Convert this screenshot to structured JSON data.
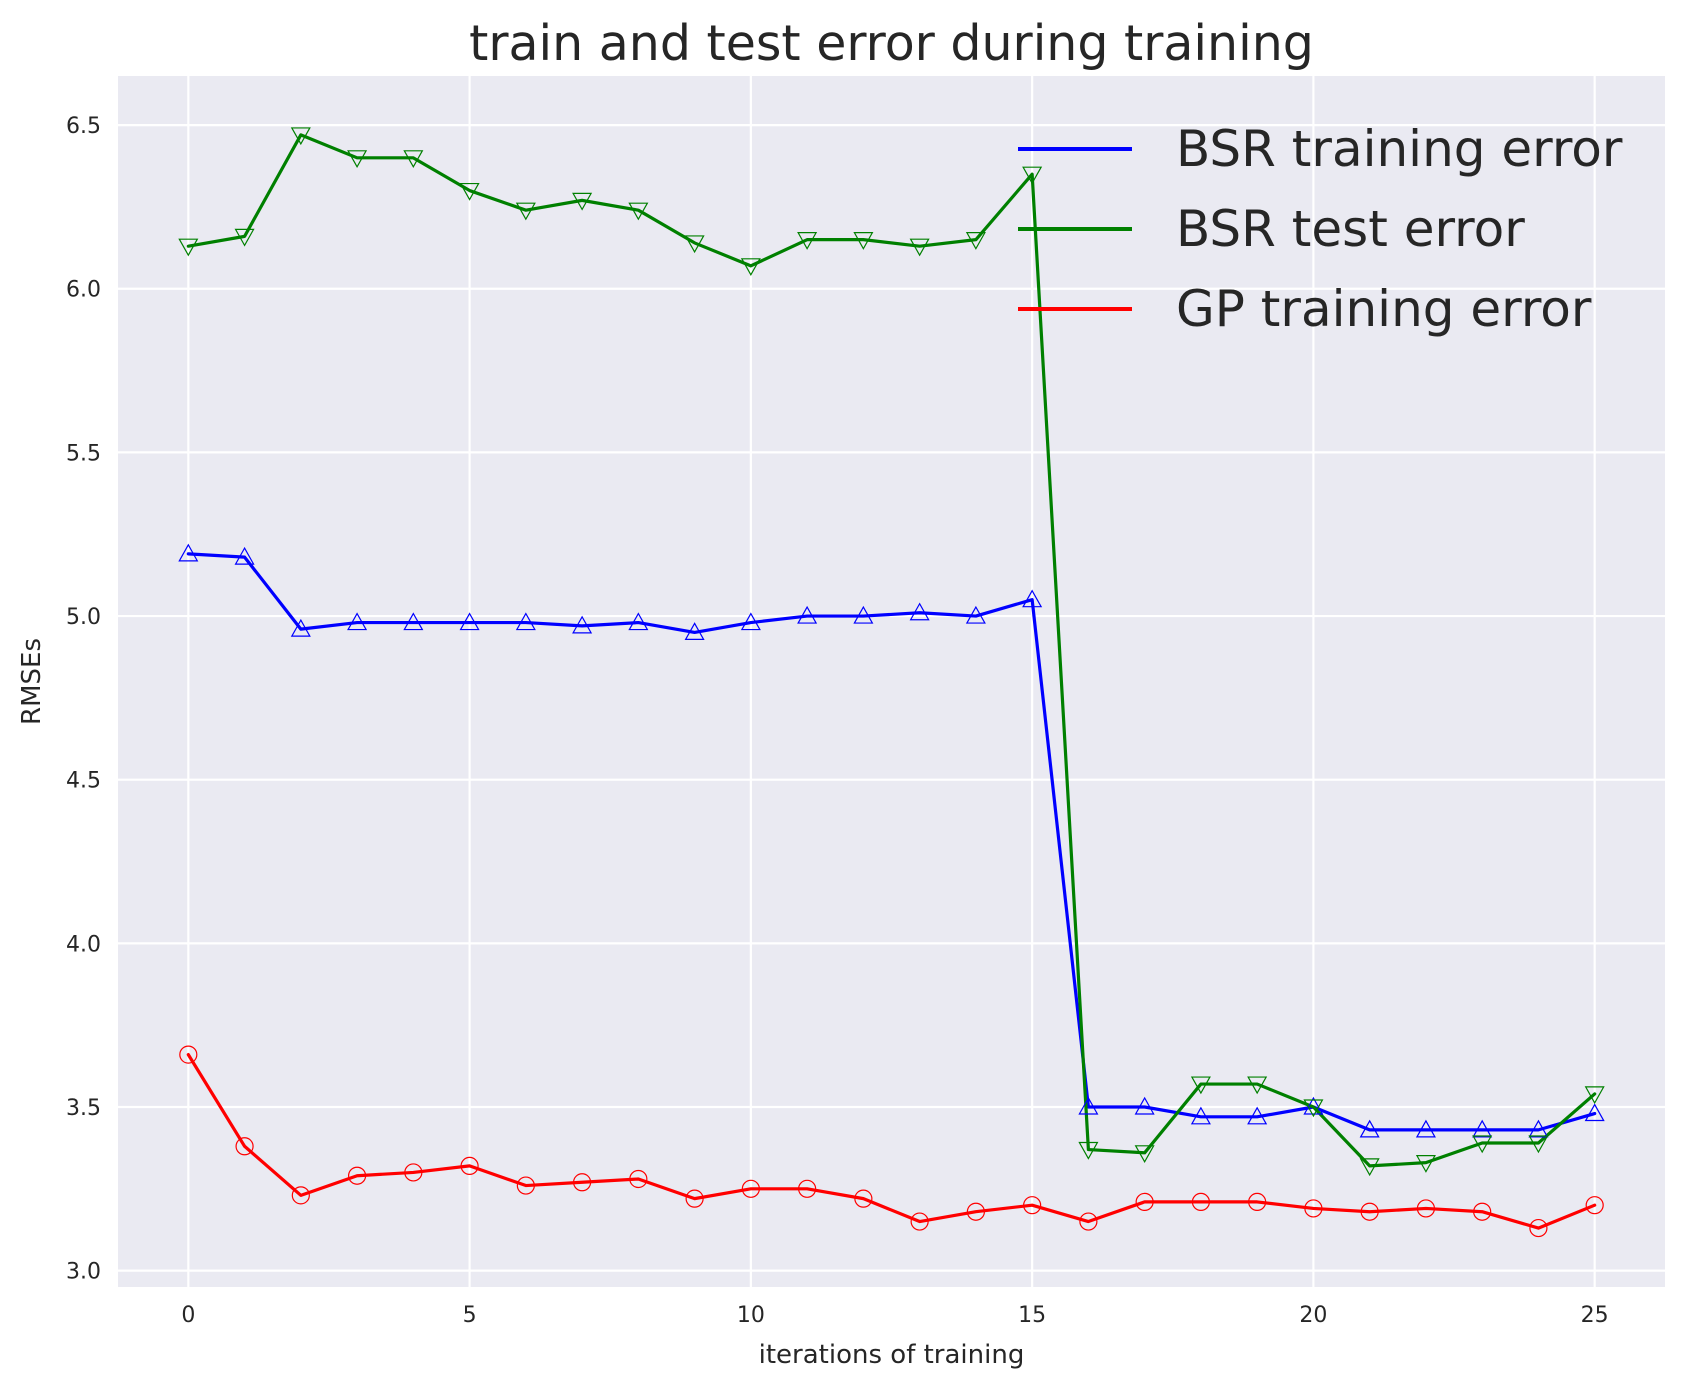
{
  "chart_data": {
    "type": "line",
    "title": "train and test error during training",
    "xlabel": "iterations of training",
    "ylabel": "RMSEs",
    "xlim": [
      -1.25,
      26.25
    ],
    "ylim": [
      2.95,
      6.65
    ],
    "x_ticks": [
      0,
      5,
      10,
      15,
      20,
      25
    ],
    "y_ticks": [
      3.0,
      3.5,
      4.0,
      4.5,
      5.0,
      5.5,
      6.0,
      6.5
    ],
    "grid": true,
    "legend_position": "top-right",
    "background_color": "#eaeaf2",
    "x": [
      0,
      1,
      2,
      3,
      4,
      5,
      6,
      7,
      8,
      9,
      10,
      11,
      12,
      13,
      14,
      15,
      16,
      17,
      18,
      19,
      20,
      21,
      22,
      23,
      24,
      25
    ],
    "series": [
      {
        "name": "BSR training error",
        "color": "#0000ff",
        "marker": "triangle-up",
        "values": [
          5.19,
          5.18,
          4.96,
          4.98,
          4.98,
          4.98,
          4.98,
          4.97,
          4.98,
          4.95,
          4.98,
          5.0,
          5.0,
          5.01,
          5.0,
          5.05,
          3.5,
          3.5,
          3.47,
          3.47,
          3.5,
          3.43,
          3.43,
          3.43,
          3.43,
          3.48
        ]
      },
      {
        "name": "BSR test error",
        "color": "#008000",
        "marker": "triangle-down",
        "values": [
          6.13,
          6.16,
          6.47,
          6.4,
          6.4,
          6.3,
          6.24,
          6.27,
          6.24,
          6.14,
          6.07,
          6.15,
          6.15,
          6.13,
          6.15,
          6.35,
          3.37,
          3.36,
          3.57,
          3.57,
          3.5,
          3.32,
          3.33,
          3.39,
          3.39,
          3.54
        ]
      },
      {
        "name": "GP training error",
        "color": "#ff0000",
        "marker": "circle",
        "values": [
          3.66,
          3.38,
          3.23,
          3.29,
          3.3,
          3.32,
          3.26,
          3.27,
          3.28,
          3.22,
          3.25,
          3.25,
          3.22,
          3.15,
          3.18,
          3.2,
          3.15,
          3.21,
          3.21,
          3.21,
          3.19,
          3.18,
          3.19,
          3.18,
          3.13,
          3.2
        ]
      }
    ]
  }
}
